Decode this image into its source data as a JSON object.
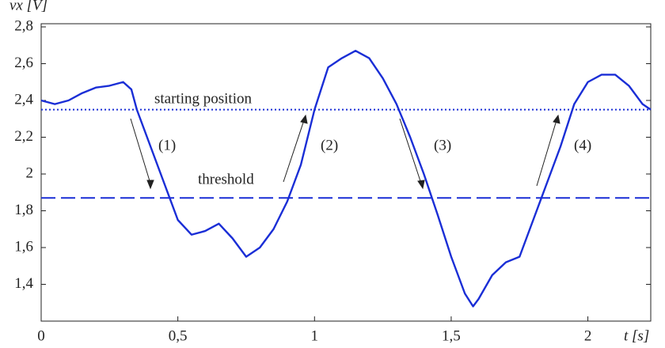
{
  "chart_data": {
    "type": "line",
    "xlabel": "t [s]",
    "ylabel": "vx [V]",
    "x": [
      0,
      0.05,
      0.1,
      0.15,
      0.2,
      0.25,
      0.3,
      0.33,
      0.35,
      0.4,
      0.45,
      0.5,
      0.55,
      0.6,
      0.65,
      0.7,
      0.75,
      0.8,
      0.85,
      0.9,
      0.95,
      1.0,
      1.05,
      1.1,
      1.15,
      1.2,
      1.25,
      1.3,
      1.35,
      1.4,
      1.45,
      1.5,
      1.55,
      1.58,
      1.6,
      1.65,
      1.7,
      1.75,
      1.8,
      1.85,
      1.9,
      1.95,
      2.0,
      2.05,
      2.1,
      2.15,
      2.2,
      2.23
    ],
    "series": [
      {
        "color": "#1a2ed6",
        "values": [
          2.4,
          2.38,
          2.4,
          2.44,
          2.47,
          2.48,
          2.5,
          2.46,
          2.35,
          2.15,
          1.95,
          1.75,
          1.67,
          1.69,
          1.73,
          1.65,
          1.55,
          1.6,
          1.7,
          1.85,
          2.05,
          2.35,
          2.58,
          2.63,
          2.67,
          2.63,
          2.52,
          2.38,
          2.2,
          2.0,
          1.78,
          1.55,
          1.35,
          1.28,
          1.32,
          1.45,
          1.52,
          1.55,
          1.75,
          1.95,
          2.15,
          2.38,
          2.5,
          2.54,
          2.54,
          2.48,
          2.38,
          2.35
        ]
      }
    ],
    "hlines": [
      {
        "value": 2.35,
        "label": "starting position",
        "style": "dotted",
        "color": "#1a2ed6"
      },
      {
        "value": 1.87,
        "label": "threshold",
        "style": "dashed",
        "color": "#1a2ed6"
      }
    ],
    "annotations": [
      "(1)",
      "(2)",
      "(3)",
      "(4)"
    ],
    "xlim": [
      0,
      2.23
    ],
    "ylim": [
      1.2,
      2.8
    ],
    "xticks": [
      0,
      {
        "value": 0.5,
        "label": "0,5"
      },
      1,
      {
        "value": 1.5,
        "label": "1,5"
      },
      2
    ],
    "yticks": [
      {
        "value": 1.4,
        "label": "1,4"
      },
      {
        "value": 1.6,
        "label": "1,6"
      },
      {
        "value": 1.8,
        "label": "1,8"
      },
      2,
      {
        "value": 2.2,
        "label": "2,2"
      },
      {
        "value": 2.4,
        "label": "2,4"
      },
      {
        "value": 2.6,
        "label": "2,6"
      },
      {
        "value": 2.8,
        "label": "2,8"
      }
    ],
    "grid": false
  }
}
